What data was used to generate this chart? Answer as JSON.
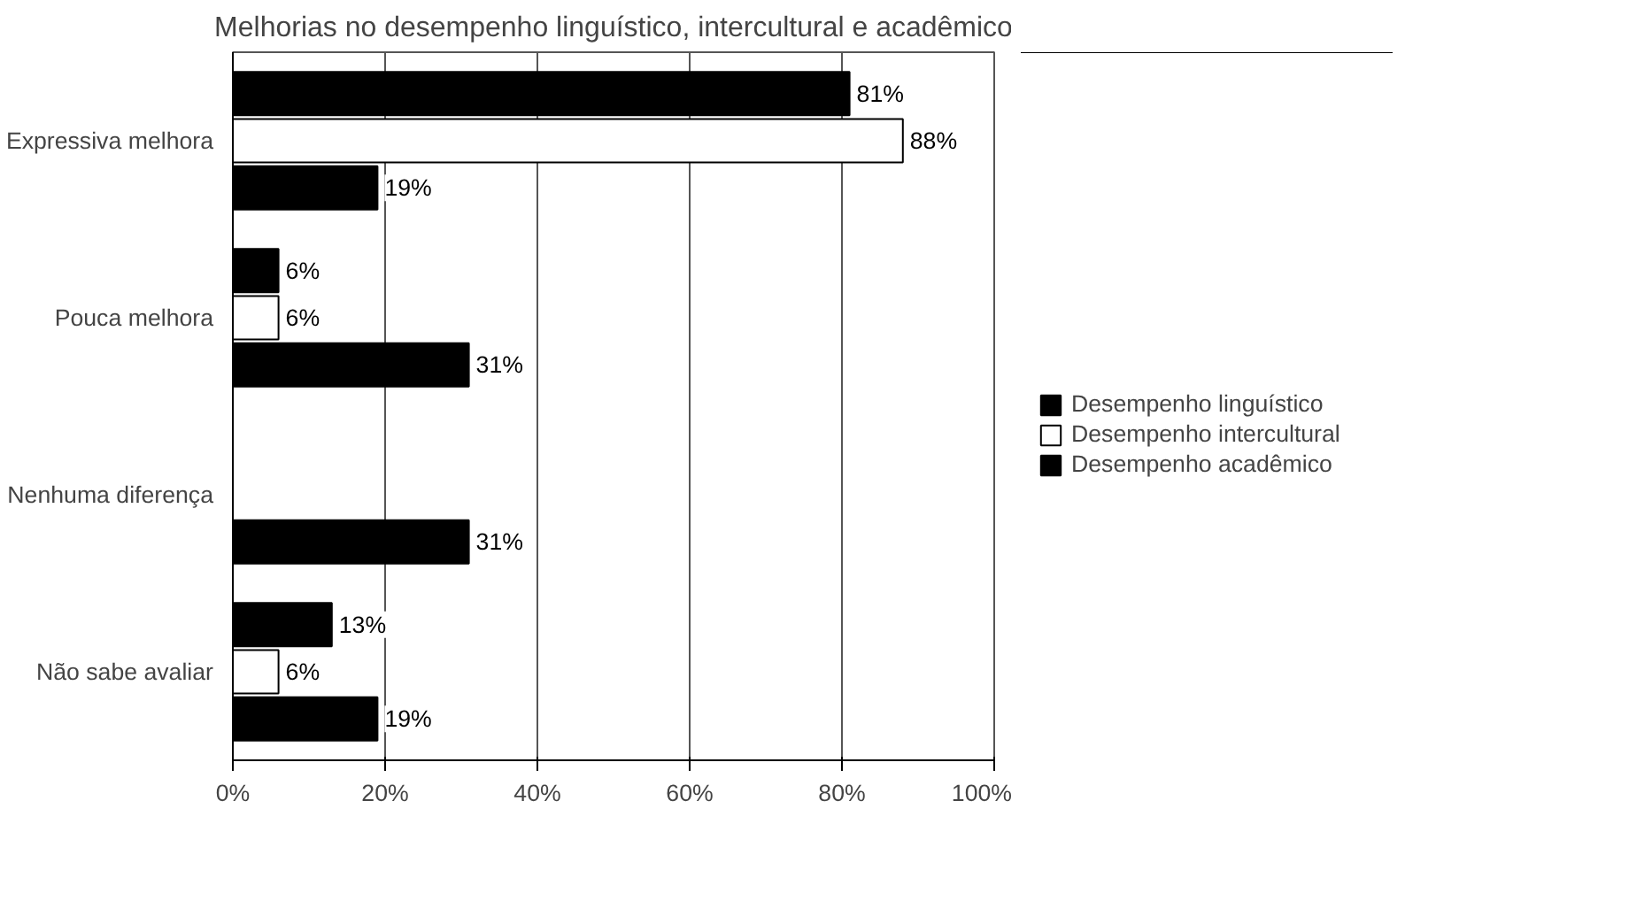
{
  "chart_data": {
    "type": "bar",
    "orientation": "horizontal",
    "title": "Melhorias no desempenho linguístico, intercultural e acadêmico",
    "categories": [
      "Expressiva melhora",
      "Pouca melhora",
      "Nenhuma diferença",
      "Não sabe avaliar"
    ],
    "series": [
      {
        "name": "Desempenho linguístico",
        "color": "#000000",
        "values": [
          81,
          6,
          null,
          13
        ],
        "value_labels": [
          "81%",
          "6%",
          null,
          "13%"
        ]
      },
      {
        "name": "Desempenho intercultural",
        "color": "#ffffff",
        "values": [
          88,
          6,
          null,
          6
        ],
        "value_labels": [
          "88%",
          "6%",
          null,
          "6%"
        ]
      },
      {
        "name": "Desempenho acadêmico",
        "color": "#000000",
        "values": [
          19,
          31,
          31,
          19
        ],
        "value_labels": [
          "19%",
          "31%",
          "31%",
          "19%"
        ]
      }
    ],
    "xlim": [
      0,
      100
    ],
    "xticks": [
      {
        "value": 0,
        "label": "0%"
      },
      {
        "value": 20,
        "label": "20%"
      },
      {
        "value": 40,
        "label": "40%"
      },
      {
        "value": 60,
        "label": "60%"
      },
      {
        "value": 80,
        "label": "80%"
      },
      {
        "value": 100,
        "label": "100%"
      }
    ],
    "grid": "x",
    "legend": "right"
  }
}
